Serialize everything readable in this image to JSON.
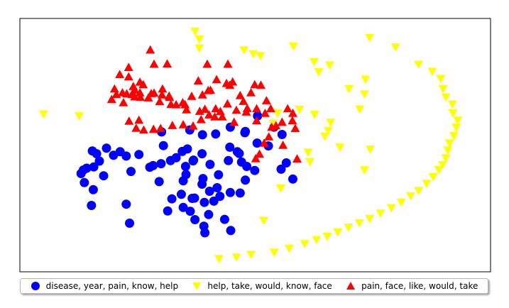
{
  "chart_data": {
    "type": "scatter",
    "title": "",
    "xlabel": "",
    "ylabel": "",
    "xlim": [
      0,
      100
    ],
    "ylim": [
      0,
      100
    ],
    "grid": false,
    "axis_ticks": false,
    "legend_position": "bottom",
    "series": [
      {
        "name": "disease, year, pain, know, help",
        "marker": "circle",
        "color": "#0000ff",
        "points": [
          [
            44.7,
            57.1
          ],
          [
            47.8,
            54.9
          ],
          [
            41.6,
            54.4
          ],
          [
            38.8,
            54.1
          ],
          [
            36.1,
            56.0
          ],
          [
            35.6,
            48.5
          ],
          [
            34.5,
            47.5
          ],
          [
            30.1,
            55.2
          ],
          [
            30.5,
            49.8
          ],
          [
            32.0,
            43.9
          ],
          [
            35.2,
            41.6
          ],
          [
            36.9,
            44.1
          ],
          [
            38.9,
            36.8
          ],
          [
            41.9,
            33.2
          ],
          [
            34.7,
            35.9
          ],
          [
            28.3,
            41.9
          ],
          [
            25.3,
            46.3
          ],
          [
            22.6,
            45.7
          ],
          [
            23.6,
            39.6
          ],
          [
            21.3,
            47.4
          ],
          [
            19.9,
            46.0
          ],
          [
            18.4,
            48.8
          ],
          [
            16.3,
            46.6
          ],
          [
            16.9,
            43.7
          ],
          [
            15.4,
            47.7
          ],
          [
            14.2,
            40.9
          ],
          [
            15.7,
            41.4
          ],
          [
            13.5,
            40.2
          ],
          [
            13.0,
            38.8
          ],
          [
            13.7,
            35.2
          ],
          [
            15.6,
            32.4
          ],
          [
            17.8,
            37.9
          ],
          [
            15.2,
            26.2
          ],
          [
            23.3,
            19.2
          ],
          [
            22.6,
            26.7
          ],
          [
            31.4,
            24.0
          ],
          [
            37.1,
            29.1
          ],
          [
            38.7,
            34.6
          ],
          [
            42.2,
            38.3
          ],
          [
            40.3,
            31.8
          ],
          [
            42.5,
            29.8
          ],
          [
            39.2,
            27.4
          ],
          [
            44.7,
            31.3
          ],
          [
            46.8,
            31.1
          ],
          [
            47.9,
            36.2
          ],
          [
            49.9,
            40.0
          ],
          [
            48.2,
            41.6
          ],
          [
            44.6,
            49.2
          ],
          [
            46.2,
            47.4
          ],
          [
            46.6,
            46.7
          ],
          [
            47.1,
            43.3
          ],
          [
            44.3,
            43.9
          ],
          [
            40.4,
            42.4
          ],
          [
            38.7,
            46.6
          ],
          [
            36.8,
            43.8
          ],
          [
            35.3,
            38.4
          ],
          [
            33.2,
            45.0
          ],
          [
            30.0,
            42.7
          ],
          [
            27.6,
            41.3
          ],
          [
            29.6,
            35.6
          ],
          [
            32.3,
            28.8
          ],
          [
            34.3,
            30.6
          ],
          [
            36.6,
            29.0
          ],
          [
            40.1,
            22.6
          ],
          [
            37.2,
            20.6
          ],
          [
            39.1,
            18.0
          ],
          [
            44.8,
            16.3
          ],
          [
            39.3,
            15.4
          ],
          [
            43.5,
            20.7
          ],
          [
            41.2,
            27.9
          ],
          [
            34.7,
            25.4
          ],
          [
            36.2,
            23.9
          ],
          [
            47.9,
            55.4
          ],
          [
            50.4,
            50.8
          ],
          [
            55.5,
            40.5
          ],
          [
            58.0,
            36.6
          ],
          [
            56.6,
            43.0
          ],
          [
            55.7,
            54.2
          ],
          [
            52.8,
            49.7
          ],
          [
            54.0,
            57.1
          ],
          [
            50.5,
            61.5
          ]
        ]
      },
      {
        "name": "help, take, would, know, face",
        "marker": "triangle_down",
        "color": "#ffff00",
        "points": [
          [
            37.2,
            95.0
          ],
          [
            38.1,
            91.9
          ],
          [
            38.1,
            88.3
          ],
          [
            47.6,
            87.6
          ],
          [
            49.6,
            86.0
          ],
          [
            51.1,
            85.3
          ],
          [
            58.1,
            89.1
          ],
          [
            62.5,
            82.9
          ],
          [
            65.8,
            81.6
          ],
          [
            74.3,
            92.5
          ],
          [
            79.8,
            88.7
          ],
          [
            84.7,
            81.9
          ],
          [
            87.6,
            79.1
          ],
          [
            89.4,
            76.3
          ],
          [
            89.9,
            72.3
          ],
          [
            90.5,
            69.0
          ],
          [
            91.9,
            66.2
          ],
          [
            92.0,
            62.7
          ],
          [
            93.0,
            59.8
          ],
          [
            92.7,
            57.0
          ],
          [
            92.2,
            53.7
          ],
          [
            91.3,
            50.8
          ],
          [
            90.9,
            48.0
          ],
          [
            90.5,
            45.0
          ],
          [
            89.8,
            42.3
          ],
          [
            89.0,
            40.3
          ],
          [
            87.8,
            37.5
          ],
          [
            86.4,
            34.9
          ],
          [
            84.7,
            32.1
          ],
          [
            83.0,
            30.0
          ],
          [
            81.0,
            27.5
          ],
          [
            78.9,
            25.3
          ],
          [
            76.6,
            23.1
          ],
          [
            74.3,
            21.0
          ],
          [
            72.1,
            19.3
          ],
          [
            69.8,
            17.6
          ],
          [
            67.5,
            15.7
          ],
          [
            65.3,
            14.0
          ],
          [
            63.0,
            12.7
          ],
          [
            60.5,
            11.1
          ],
          [
            57.2,
            9.3
          ],
          [
            54.0,
            7.7
          ],
          [
            49.1,
            6.9
          ],
          [
            46.0,
            5.8
          ],
          [
            42.3,
            5.2
          ],
          [
            63.5,
            78.9
          ],
          [
            73.4,
            76.0
          ],
          [
            69.9,
            72.3
          ],
          [
            72.2,
            64.2
          ],
          [
            73.2,
            70.2
          ],
          [
            59.4,
            64.1
          ],
          [
            62.6,
            62.1
          ],
          [
            54.7,
            62.6
          ],
          [
            66.0,
            59.0
          ],
          [
            65.5,
            55.8
          ],
          [
            61.2,
            47.2
          ],
          [
            61.6,
            43.5
          ],
          [
            64.8,
            53.5
          ],
          [
            68.0,
            49.2
          ],
          [
            74.4,
            48.4
          ],
          [
            73.2,
            40.2
          ],
          [
            55.4,
            33.0
          ],
          [
            53.8,
            58.6
          ],
          [
            5.0,
            62.3
          ],
          [
            12.6,
            61.5
          ],
          [
            51.8,
            20.3
          ]
        ]
      },
      {
        "name": "pain, face, like, would, take",
        "marker": "triangle_up",
        "color": "#ff0000",
        "points": [
          [
            27.7,
            87.6
          ],
          [
            28.5,
            82.0
          ],
          [
            31.3,
            82.1
          ],
          [
            23.1,
            80.7
          ],
          [
            39.8,
            82.0
          ],
          [
            44.2,
            82.0
          ],
          [
            37.9,
            75.4
          ],
          [
            41.8,
            75.9
          ],
          [
            40.5,
            71.7
          ],
          [
            43.9,
            74.4
          ],
          [
            45.2,
            75.0
          ],
          [
            44.6,
            73.7
          ],
          [
            40.0,
            71.6
          ],
          [
            38.8,
            69.9
          ],
          [
            36.5,
            69.3
          ],
          [
            35.1,
            66.0
          ],
          [
            33.2,
            66.0
          ],
          [
            31.8,
            68.9
          ],
          [
            30.3,
            72.2
          ],
          [
            28.5,
            70.6
          ],
          [
            27.9,
            70.4
          ],
          [
            26.2,
            73.9
          ],
          [
            25.5,
            74.9
          ],
          [
            25.5,
            70.7
          ],
          [
            24.4,
            69.1
          ],
          [
            24.4,
            71.8
          ],
          [
            23.8,
            70.0
          ],
          [
            22.7,
            70.3
          ],
          [
            21.8,
            70.7
          ],
          [
            20.5,
            70.0
          ],
          [
            22.0,
            66.8
          ],
          [
            19.5,
            68.1
          ],
          [
            20.1,
            72.2
          ],
          [
            21.2,
            77.9
          ],
          [
            23.1,
            77.0
          ],
          [
            24.1,
            73.2
          ],
          [
            25.6,
            68.9
          ],
          [
            27.3,
            68.7
          ],
          [
            29.7,
            67.2
          ],
          [
            30.2,
            69.9
          ],
          [
            31.7,
            69.4
          ],
          [
            32.1,
            66.1
          ],
          [
            34.6,
            66.8
          ],
          [
            35.4,
            64.0
          ],
          [
            38.2,
            63.4
          ],
          [
            39.3,
            64.2
          ],
          [
            41.6,
            64.4
          ],
          [
            42.6,
            63.3
          ],
          [
            44.1,
            66.3
          ],
          [
            46.8,
            69.6
          ],
          [
            47.5,
            67.3
          ],
          [
            49.1,
            70.7
          ],
          [
            49.9,
            73.9
          ],
          [
            51.2,
            73.7
          ],
          [
            52.4,
            67.6
          ],
          [
            53.3,
            64.4
          ],
          [
            52.1,
            62.6
          ],
          [
            50.3,
            64.4
          ],
          [
            48.3,
            64.5
          ],
          [
            46.0,
            63.8
          ],
          [
            43.0,
            61.2
          ],
          [
            41.4,
            61.2
          ],
          [
            40.2,
            62.0
          ],
          [
            38.5,
            60.1
          ],
          [
            36.8,
            57.6
          ],
          [
            34.7,
            58.1
          ],
          [
            32.4,
            57.8
          ],
          [
            29.9,
            56.6
          ],
          [
            28.4,
            56.3
          ],
          [
            26.3,
            56.0
          ],
          [
            25.3,
            59.9
          ],
          [
            24.7,
            56.7
          ],
          [
            23.2,
            59.5
          ],
          [
            45.5,
            59.1
          ],
          [
            48.1,
            63.1
          ],
          [
            50.3,
            59.7
          ],
          [
            53.5,
            57.1
          ],
          [
            55.7,
            59.1
          ],
          [
            58.0,
            62.6
          ],
          [
            57.9,
            59.7
          ],
          [
            54.4,
            57.7
          ],
          [
            56.9,
            64.4
          ],
          [
            58.5,
            56.6
          ],
          [
            52.9,
            53.3
          ],
          [
            51.9,
            50.8
          ],
          [
            50.9,
            46.5
          ],
          [
            50.1,
            44.7
          ],
          [
            55.9,
            50.0
          ],
          [
            58.9,
            44.6
          ]
        ]
      }
    ]
  }
}
